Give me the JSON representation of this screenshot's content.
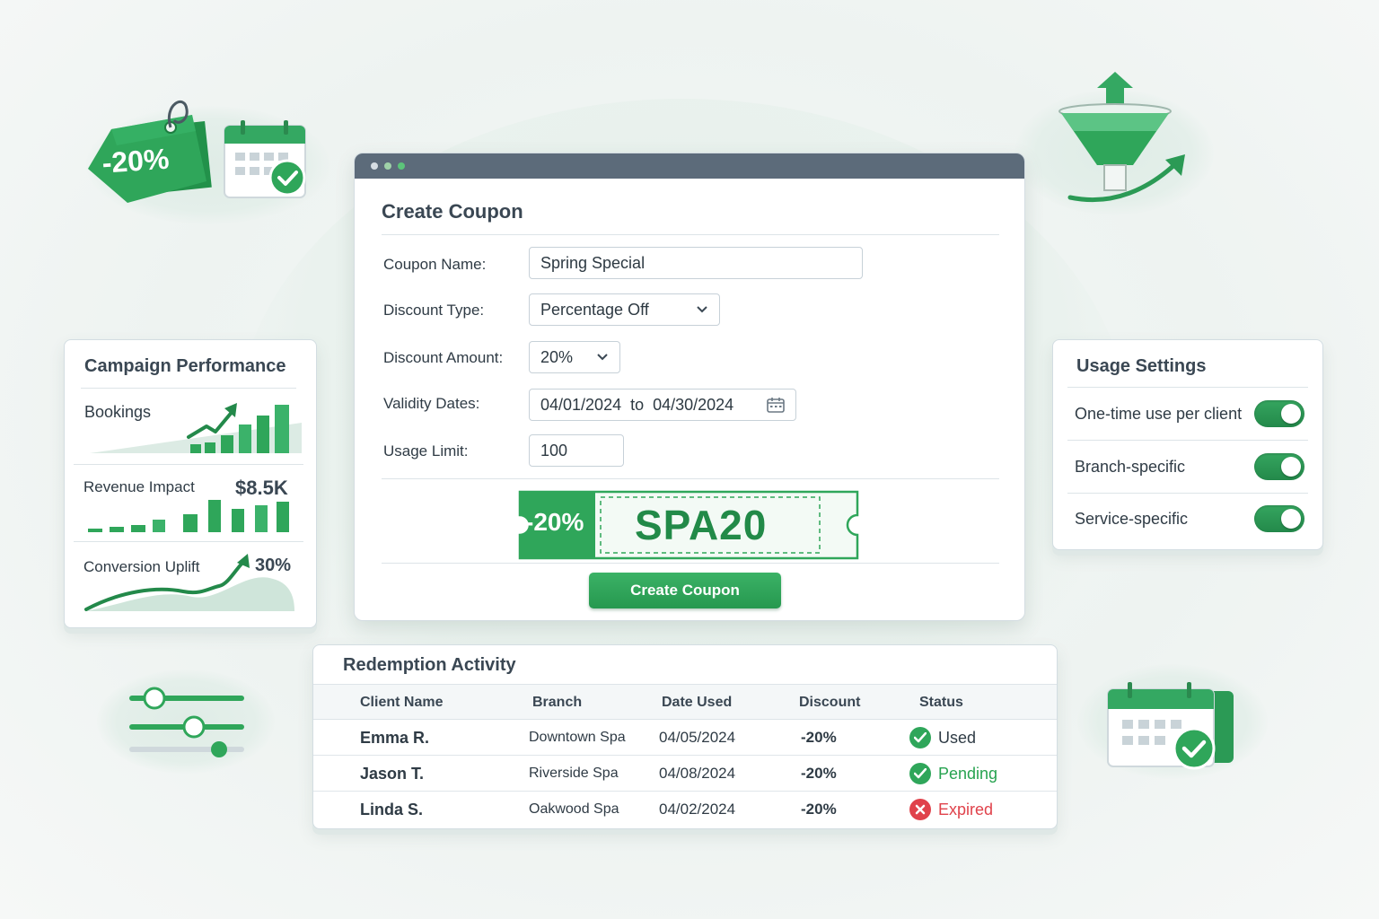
{
  "colors": {
    "brand_green": "#2e9e58",
    "pending_green": "#27a350",
    "expired_red": "#e0424b",
    "titlebar": "#5c6b7a"
  },
  "create_coupon": {
    "title": "Create Coupon",
    "fields": {
      "coupon_name": {
        "label": "Coupon Name:",
        "value": "Spring Special"
      },
      "discount_type": {
        "label": "Discount Type:",
        "value": "Percentage Off"
      },
      "discount_amount": {
        "label": "Discount Amount:",
        "value": "20%"
      },
      "validity_dates": {
        "label": "Validity Dates:",
        "value": "04/01/2024  to  04/30/2024"
      },
      "usage_limit": {
        "label": "Usage Limit:",
        "value": "100"
      }
    },
    "coupon_preview": {
      "discount": "-20%",
      "code": "SPA20"
    },
    "submit_label": "Create Coupon"
  },
  "campaign_performance": {
    "title": "Campaign Performance",
    "bookings_label": "Bookings",
    "revenue_label": "Revenue Impact",
    "revenue_value": "$8.5K",
    "conversion_label": "Conversion Uplift",
    "conversion_value": "30%"
  },
  "usage_settings": {
    "title": "Usage Settings",
    "items": [
      {
        "label": "One-time use per client",
        "enabled": true
      },
      {
        "label": "Branch-specific",
        "enabled": true
      },
      {
        "label": "Service-specific",
        "enabled": true
      }
    ]
  },
  "redemption_activity": {
    "title": "Redemption Activity",
    "columns": [
      "Client Name",
      "Branch",
      "Date Used",
      "Discount",
      "Status"
    ],
    "rows": [
      {
        "client": "Emma R.",
        "branch": "Downtown Spa",
        "date": "04/05/2024",
        "discount": "-20%",
        "status": "Used"
      },
      {
        "client": "Jason T.",
        "branch": "Riverside Spa",
        "date": "04/08/2024",
        "discount": "-20%",
        "status": "Pending"
      },
      {
        "client": "Linda S.",
        "branch": "Oakwood Spa",
        "date": "04/02/2024",
        "discount": "-20%",
        "status": "Expired"
      }
    ]
  },
  "decorations": {
    "price_tag_text": "-20%",
    "icons": [
      "price-tag-icon",
      "calendar-check-icon",
      "funnel-growth-icon",
      "sliders-icon",
      "calendar-check-icon"
    ]
  }
}
